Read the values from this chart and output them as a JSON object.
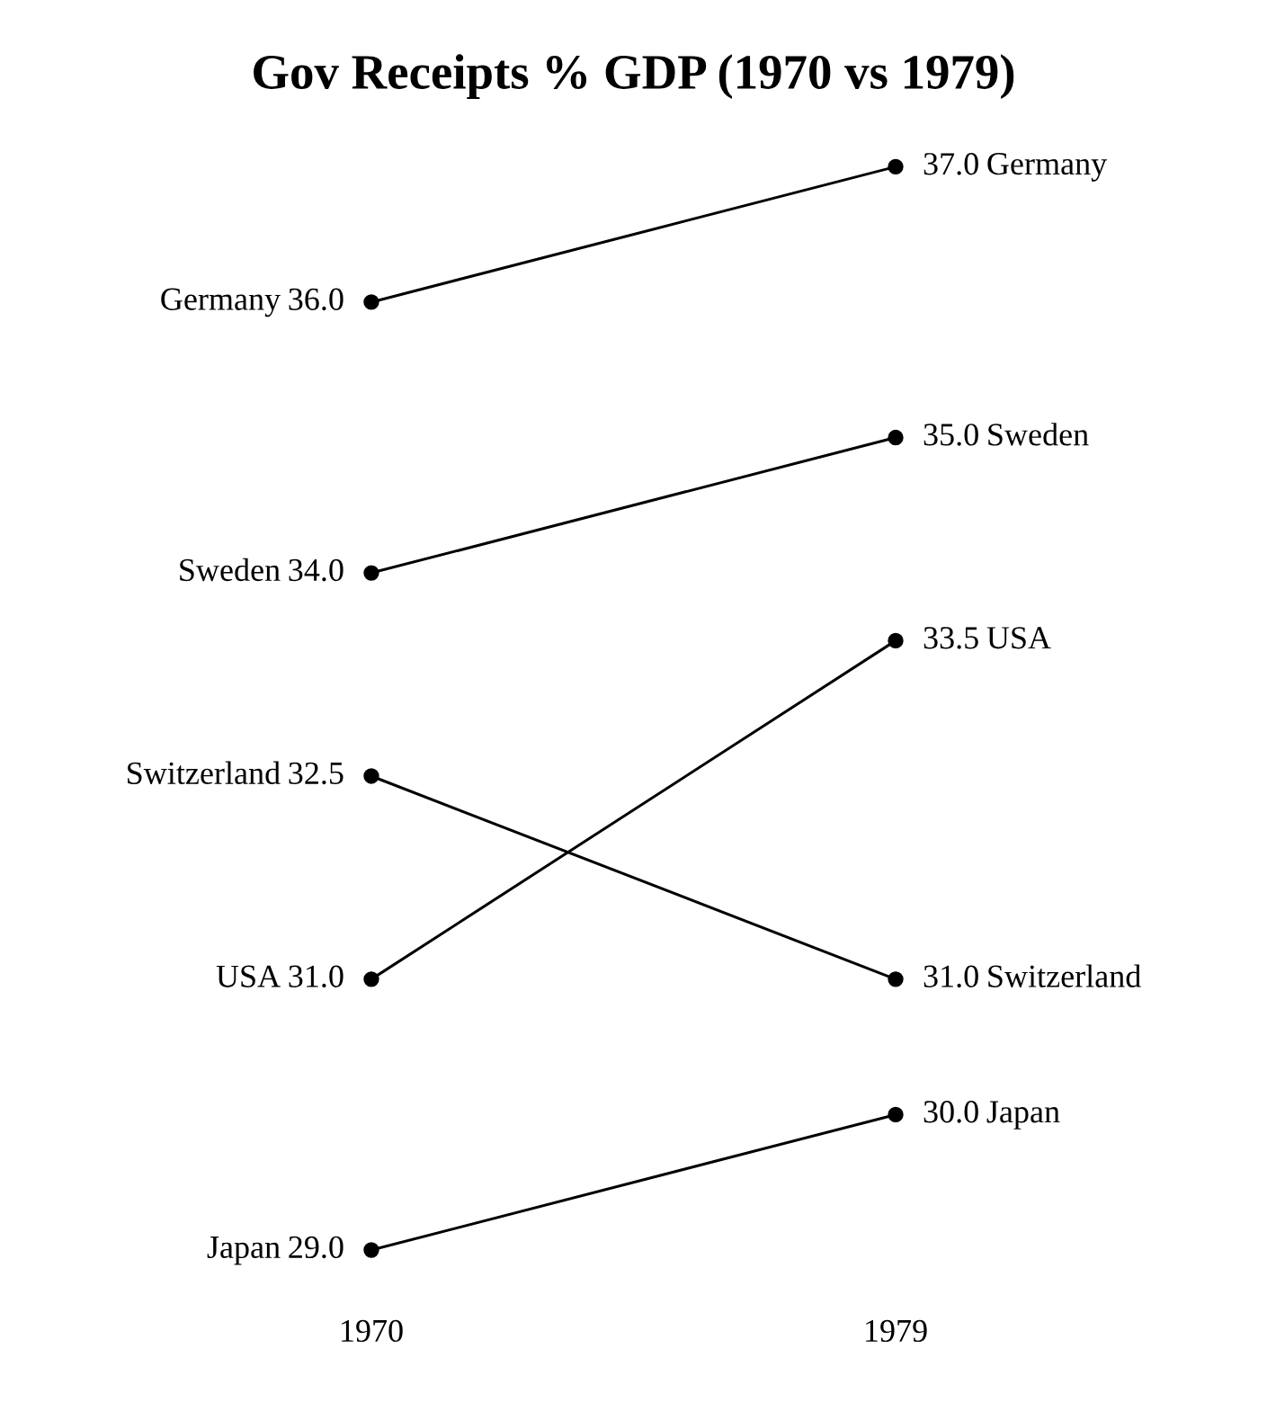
{
  "chart_data": {
    "type": "line",
    "title": "Gov Receipts % GDP (1970 vs 1979)",
    "categories": [
      "1970",
      "1979"
    ],
    "series": [
      {
        "name": "Germany",
        "color": "#000000",
        "values": [
          36.0,
          37.0
        ],
        "value_labels": [
          "36.0",
          "37.0"
        ]
      },
      {
        "name": "Sweden",
        "color": "#000000",
        "values": [
          34.0,
          35.0
        ],
        "value_labels": [
          "34.0",
          "35.0"
        ]
      },
      {
        "name": "Switzerland",
        "color": "#000000",
        "values": [
          32.5,
          31.0
        ],
        "value_labels": [
          "32.5",
          "31.0"
        ]
      },
      {
        "name": "USA",
        "color": "#000000",
        "values": [
          31.0,
          33.5
        ],
        "value_labels": [
          "31.0",
          "33.5"
        ]
      },
      {
        "name": "Japan",
        "color": "#000000",
        "values": [
          29.0,
          30.0
        ],
        "value_labels": [
          "29.0",
          "30.0"
        ]
      }
    ],
    "marker": "circle",
    "line_style": "solid",
    "tick_labels": "x"
  }
}
